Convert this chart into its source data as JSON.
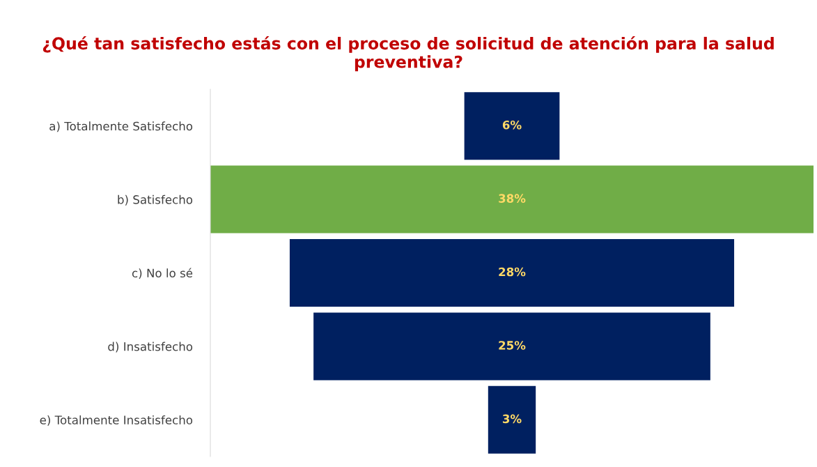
{
  "chart_data": {
    "type": "other",
    "title": "¿Qué tan satisfecho estás con el proceso de solicitud de atención para la salud preventiva?",
    "categories": [
      "a) Totalmente Satisfecho",
      "b) Satisfecho",
      "c) No lo sé",
      "d) Insatisfecho",
      "e) Totalmente Insatisfecho"
    ],
    "values": [
      6,
      38,
      28,
      25,
      3
    ],
    "colors": [
      "#002060",
      "#70ad47",
      "#002060",
      "#002060",
      "#002060"
    ],
    "value_labels": [
      "6%",
      "38%",
      "28%",
      "25%",
      "3%"
    ]
  }
}
